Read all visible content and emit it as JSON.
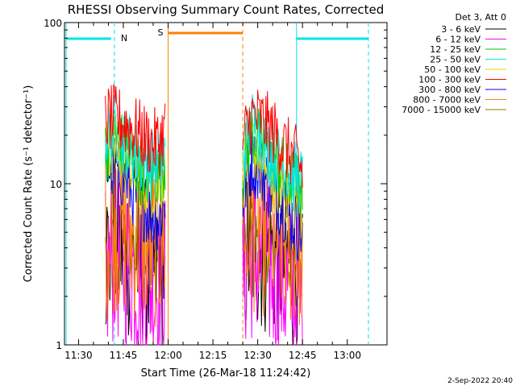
{
  "chart_data": {
    "type": "line",
    "title": "RHESSI Observing Summary Count Rates, Corrected",
    "xlabel": "Start Time (26-Mar-18 11:24:42)",
    "ylabel": "Corrected Count Rate (s⁻¹ detector⁻¹)",
    "ylog": true,
    "ylim": [
      1,
      100
    ],
    "xlim_minutes": [
      -4.7,
      103.3
    ],
    "x_tick_labels": [
      "11:30",
      "11:45",
      "12:00",
      "12:15",
      "12:30",
      "12:45",
      "13:00"
    ],
    "y_tick_labels": [
      "1",
      "10",
      "100"
    ],
    "legend_title": "Det 3, Att 0",
    "legend_position": "right",
    "series": [
      {
        "name": "3 - 6 keV",
        "color": "#000000",
        "x": [
          "11:39",
          "11:42",
          "11:45",
          "11:48",
          "11:51",
          "11:54",
          "11:57",
          "11:59",
          "12:25",
          "12:28",
          "12:31",
          "12:34",
          "12:37",
          "12:40",
          "12:43",
          "12:45"
        ],
        "y": [
          3.5,
          4.2,
          4.0,
          3.6,
          3.3,
          3.1,
          3.0,
          3.4,
          3.0,
          4.3,
          4.0,
          3.7,
          3.4,
          3.2,
          3.0,
          2.8
        ]
      },
      {
        "name": "6 - 12 keV",
        "color": "#ff00ff",
        "x": [
          "11:39",
          "11:42",
          "11:45",
          "11:48",
          "11:51",
          "11:54",
          "11:57",
          "11:59",
          "12:25",
          "12:28",
          "12:31",
          "12:34",
          "12:37",
          "12:40",
          "12:43",
          "12:45"
        ],
        "y": [
          2.6,
          3.6,
          3.3,
          3.0,
          2.6,
          2.4,
          2.3,
          2.7,
          2.8,
          3.6,
          3.3,
          2.9,
          2.6,
          2.3,
          2.0,
          1.6
        ]
      },
      {
        "name": "12 - 25 keV",
        "color": "#00cc00",
        "x": [
          "11:39",
          "11:42",
          "11:45",
          "11:48",
          "11:51",
          "11:54",
          "11:57",
          "11:59",
          "12:25",
          "12:28",
          "12:31",
          "12:34",
          "12:37",
          "12:40",
          "12:43",
          "12:45"
        ],
        "y": [
          16,
          20,
          17,
          14,
          12,
          11,
          12,
          14,
          12,
          21,
          18,
          15,
          13,
          11,
          10,
          9
        ]
      },
      {
        "name": "25 - 50 keV",
        "color": "#00e5e5",
        "x": [
          "11:39",
          "11:42",
          "11:45",
          "11:48",
          "11:51",
          "11:54",
          "11:57",
          "11:59",
          "12:25",
          "12:28",
          "12:31",
          "12:34",
          "12:37",
          "12:40",
          "12:43",
          "12:45"
        ],
        "y": [
          20,
          22,
          19,
          16,
          14,
          13,
          13,
          15,
          14,
          24,
          20,
          16,
          14,
          12,
          11,
          10
        ]
      },
      {
        "name": "50 - 100 keV",
        "color": "#d8d800",
        "x": [
          "11:39",
          "11:42",
          "11:45",
          "11:48",
          "11:51",
          "11:54",
          "11:57",
          "11:59",
          "12:25",
          "12:28",
          "12:31",
          "12:34",
          "12:37",
          "12:40",
          "12:43",
          "12:45"
        ],
        "y": [
          15,
          17,
          15,
          13,
          11,
          10,
          10,
          12,
          11,
          18,
          15,
          12,
          10,
          9,
          8,
          7
        ]
      },
      {
        "name": "100 - 300 keV",
        "color": "#ff0000",
        "x": [
          "11:39",
          "11:42",
          "11:45",
          "11:48",
          "11:51",
          "11:54",
          "11:57",
          "11:59",
          "12:25",
          "12:28",
          "12:31",
          "12:34",
          "12:37",
          "12:40",
          "12:43",
          "12:45"
        ],
        "y": [
          25,
          25,
          24,
          22,
          20,
          18,
          18,
          22,
          18,
          26,
          25,
          22,
          19,
          16,
          14,
          12
        ]
      },
      {
        "name": "300 - 800 keV",
        "color": "#0000ff",
        "x": [
          "11:39",
          "11:42",
          "11:45",
          "11:48",
          "11:51",
          "11:54",
          "11:57",
          "11:59",
          "12:25",
          "12:28",
          "12:31",
          "12:34",
          "12:37",
          "12:40",
          "12:43",
          "12:45"
        ],
        "y": [
          12,
          13,
          11,
          9,
          7.5,
          6.5,
          6.0,
          7.5,
          8,
          14,
          12,
          9.5,
          8,
          6.5,
          5.5,
          5.0
        ]
      },
      {
        "name": "800 - 7000 keV",
        "color": "#ff8000",
        "x": [
          "11:39",
          "11:42",
          "11:45",
          "11:48",
          "11:51",
          "11:54",
          "11:57",
          "11:59",
          "12:25",
          "12:28",
          "12:31",
          "12:34",
          "12:37",
          "12:40",
          "12:43",
          "12:45"
        ],
        "y": [
          5.0,
          5.5,
          5.2,
          4.9,
          4.6,
          4.4,
          4.3,
          4.6,
          4.5,
          5.6,
          5.3,
          5.0,
          4.7,
          4.4,
          4.2,
          4.0
        ]
      },
      {
        "name": "7000 - 15000 keV",
        "color": "#808000",
        "x": [
          "11:39",
          "11:42",
          "11:45",
          "11:48",
          "11:51",
          "11:54",
          "11:57",
          "11:59",
          "12:25",
          "12:28",
          "12:31",
          "12:34",
          "12:37",
          "12:40",
          "12:43",
          "12:45"
        ],
        "y": [
          4.0,
          4.4,
          4.1,
          3.8,
          3.6,
          3.4,
          3.3,
          3.6,
          3.5,
          4.5,
          4.2,
          3.9,
          3.6,
          3.4,
          3.2,
          3.0
        ]
      }
    ],
    "annotations": [
      {
        "label": "N",
        "color": "#00e5e5",
        "start": "11:42",
        "end": "12:43"
      },
      {
        "label": "S",
        "color": "#ff8000",
        "start": "12:00",
        "end": "12:25"
      }
    ],
    "footer_date": "2-Sep-2022 20:40"
  }
}
